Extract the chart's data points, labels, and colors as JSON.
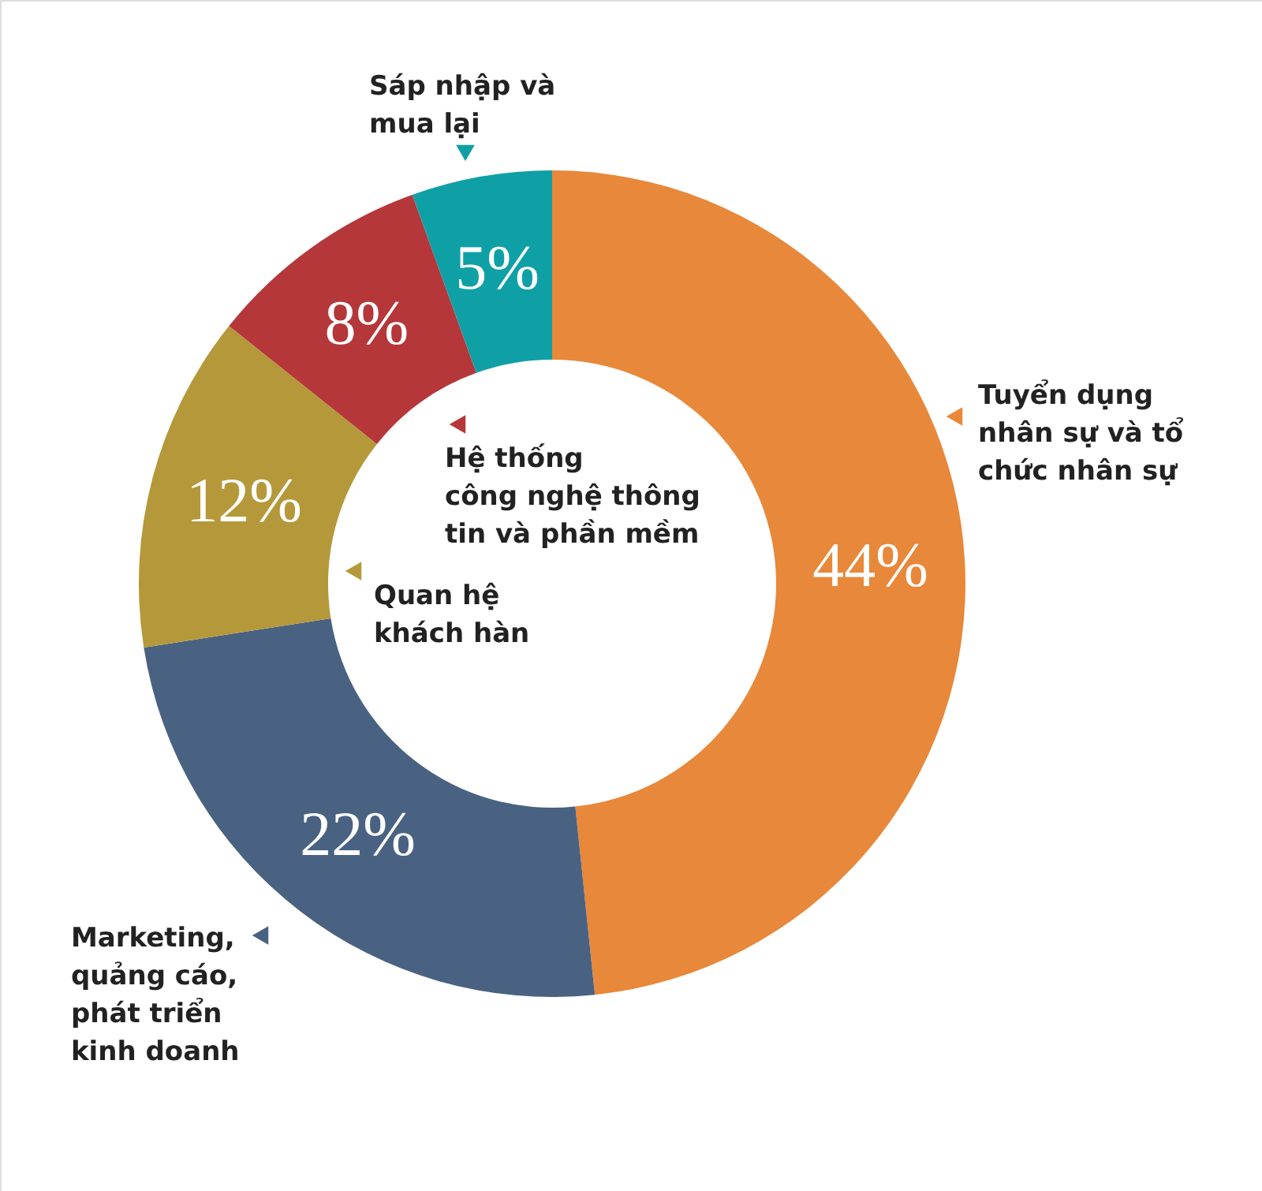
{
  "chart_data": {
    "type": "donut",
    "categories": [
      "Tuyển dụng\nnhân sự và tổ\nchức nhân sự",
      "Marketing,\nquảng cáo,\nphát triển\nkinh doanh",
      "Quan hệ\nkhách hàn",
      "Hệ thống\ncông nghệ thông\ntin và phần mềm",
      "Sáp nhập và\nmua lại"
    ],
    "values": [
      44,
      22,
      12,
      8,
      5
    ],
    "colors": [
      "#e8883a",
      "#4a6282",
      "#b5983a",
      "#b5373a",
      "#0fa0a6"
    ],
    "value_labels": [
      "44%",
      "22%",
      "12%",
      "8%",
      "5%"
    ],
    "legend": "center"
  }
}
